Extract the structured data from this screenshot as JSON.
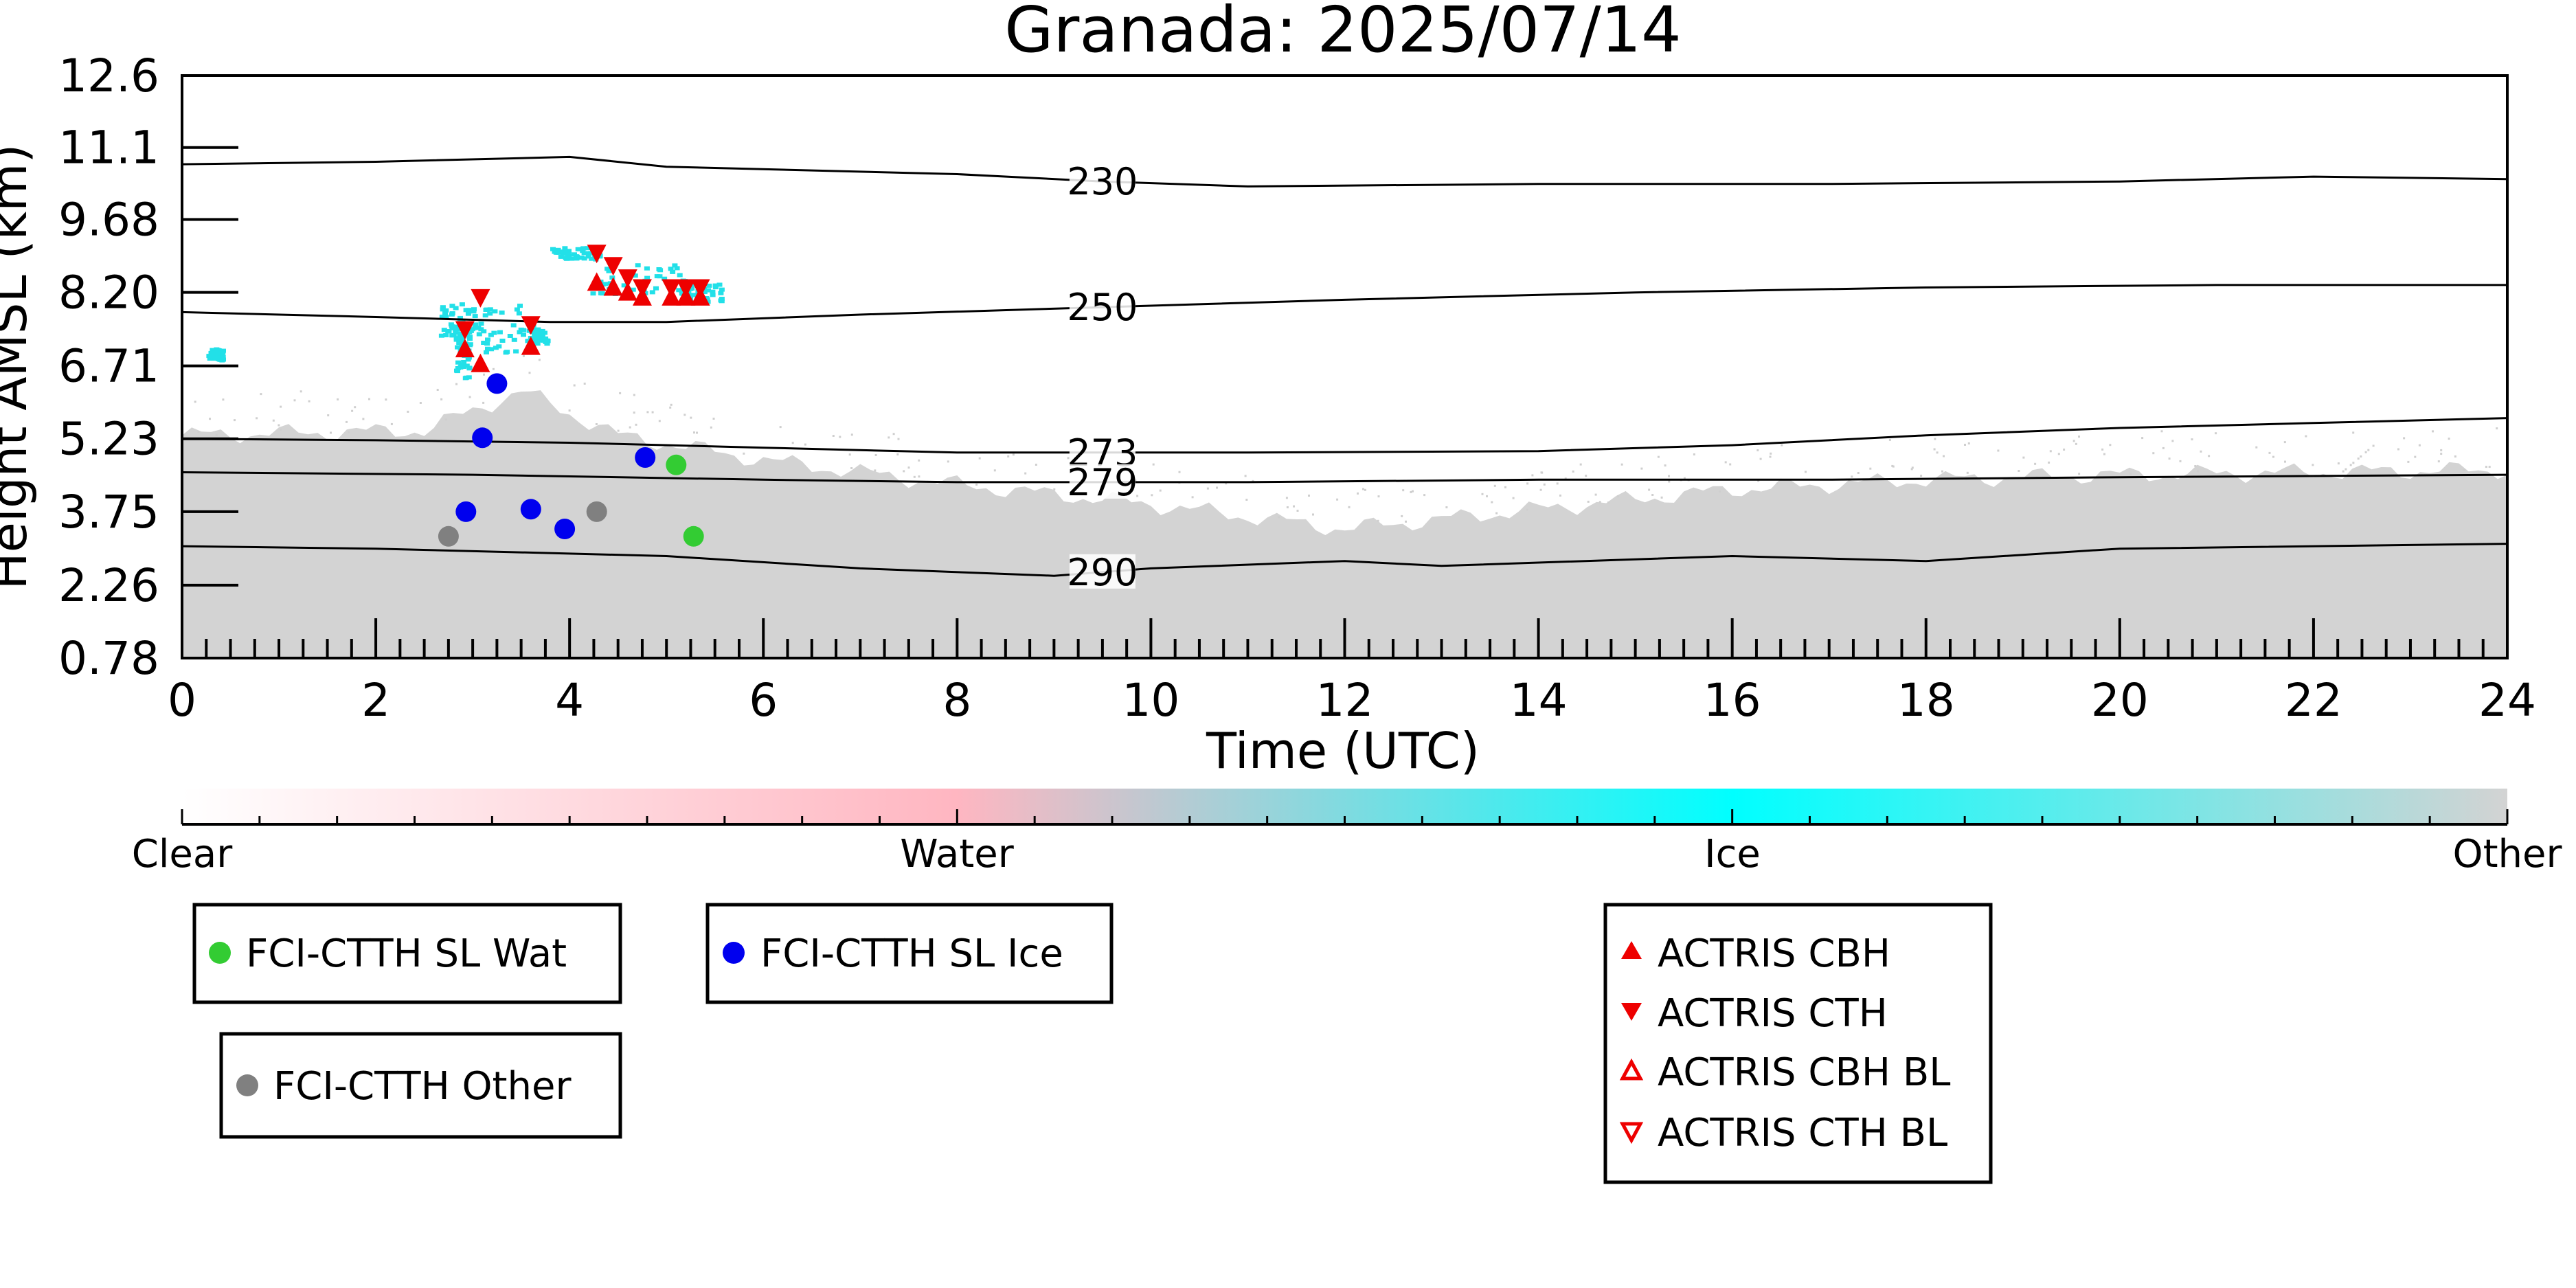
{
  "chart_data": {
    "type": "scatter",
    "title": "Granada: 2025/07/14",
    "xlabel": "Time (UTC)",
    "ylabel": "Height AMSL (km)",
    "xlim": [
      0,
      24
    ],
    "ylim": [
      0.78,
      12.6
    ],
    "x_ticks": [
      "0",
      "2",
      "4",
      "6",
      "8",
      "10",
      "12",
      "14",
      "16",
      "18",
      "20",
      "22",
      "24"
    ],
    "y_ticks": [
      "0.78",
      "2.26",
      "3.75",
      "5.23",
      "6.71",
      "8.20",
      "9.68",
      "11.1",
      "12.6"
    ],
    "y_tick_values": [
      0.78,
      2.26,
      3.75,
      5.23,
      6.71,
      8.2,
      9.68,
      11.14,
      12.6
    ],
    "colorbar": {
      "labels": [
        "Clear",
        "Water",
        "Ice",
        "Other"
      ],
      "colors": [
        "#ffffff",
        "#ffb6c1",
        "#00ffff",
        "#d3d3d3"
      ]
    },
    "isotherms": [
      {
        "label": "230",
        "x": [
          0,
          2,
          4,
          5,
          8,
          9.5,
          11,
          14,
          17,
          20,
          22,
          24
        ],
        "y": [
          10.8,
          10.85,
          10.95,
          10.75,
          10.6,
          10.45,
          10.35,
          10.4,
          10.4,
          10.45,
          10.55,
          10.5
        ]
      },
      {
        "label": "250",
        "x": [
          0,
          2,
          3.8,
          5,
          7,
          9.5,
          12,
          15,
          18,
          21,
          24
        ],
        "y": [
          7.8,
          7.7,
          7.6,
          7.6,
          7.75,
          7.9,
          8.05,
          8.2,
          8.3,
          8.35,
          8.35
        ]
      },
      {
        "label": "273",
        "x": [
          0,
          2,
          4,
          6,
          8,
          9.5,
          11,
          14,
          16,
          18,
          20,
          22,
          24
        ],
        "y": [
          5.23,
          5.2,
          5.15,
          5.05,
          4.95,
          4.95,
          4.95,
          4.98,
          5.1,
          5.3,
          5.45,
          5.55,
          5.65
        ]
      },
      {
        "label": "279",
        "x": [
          0,
          3,
          6,
          8,
          9.5,
          11,
          14,
          17,
          20,
          24
        ],
        "y": [
          4.55,
          4.5,
          4.4,
          4.35,
          4.35,
          4.35,
          4.4,
          4.4,
          4.45,
          4.5
        ]
      },
      {
        "label": "290",
        "x": [
          0,
          2,
          5,
          7,
          9,
          10,
          12,
          13,
          16,
          18,
          20,
          24
        ],
        "y": [
          3.05,
          3.0,
          2.85,
          2.6,
          2.45,
          2.6,
          2.75,
          2.65,
          2.85,
          2.75,
          3.0,
          3.1
        ]
      }
    ],
    "series": [
      {
        "name": "FCI-CTTH SL Wat",
        "color": "#33cc33",
        "marker": "circle",
        "x": [
          5.1,
          5.28
        ],
        "y": [
          4.7,
          3.25
        ]
      },
      {
        "name": "FCI-CTTH SL Ice",
        "color": "#0000ee",
        "marker": "circle",
        "x": [
          3.25,
          3.1,
          4.78,
          2.93,
          3.6,
          3.95
        ],
        "y": [
          6.35,
          5.25,
          4.85,
          3.75,
          3.8,
          3.4
        ]
      },
      {
        "name": "FCI-CTTH Other",
        "color": "#808080",
        "marker": "circle",
        "x": [
          2.75,
          4.28
        ],
        "y": [
          3.25,
          3.75
        ]
      },
      {
        "name": "ACTRIS CBH",
        "color": "#ee0000",
        "marker": "triangle-up",
        "x": [
          2.92,
          3.08,
          3.6,
          4.28,
          4.45,
          4.6,
          4.75,
          5.05,
          5.2,
          5.35
        ],
        "y": [
          7.05,
          6.75,
          7.1,
          8.4,
          8.3,
          8.2,
          8.1,
          8.1,
          8.1,
          8.1
        ]
      },
      {
        "name": "ACTRIS CTH",
        "color": "#ee0000",
        "marker": "triangle-down",
        "x": [
          3.08,
          2.92,
          3.6,
          4.28,
          4.45,
          4.6,
          4.75,
          5.05,
          5.2,
          5.35
        ],
        "y": [
          8.1,
          7.45,
          7.55,
          9.0,
          8.75,
          8.5,
          8.3,
          8.3,
          8.3,
          8.3
        ]
      },
      {
        "name": "ACTRIS CBH BL",
        "color": "#ee0000",
        "marker": "triangle-up-open",
        "x": [],
        "y": []
      },
      {
        "name": "ACTRIS CTH BL",
        "color": "#ee0000",
        "marker": "triangle-down-open",
        "x": [],
        "y": []
      }
    ]
  }
}
